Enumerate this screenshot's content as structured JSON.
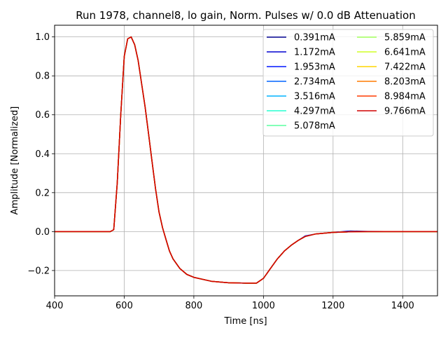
{
  "chart_data": {
    "type": "line",
    "title": "Run 1978, channel8, lo gain, Norm. Pulses w/ 0.0 dB Attenuation",
    "xlabel": "Time [ns]",
    "ylabel": "Amplitude [Normalized]",
    "xlim": [
      400,
      1500
    ],
    "ylim": [
      -0.33,
      1.06
    ],
    "xticks": [
      400,
      600,
      800,
      1000,
      1200,
      1400
    ],
    "xtick_labels": [
      "400",
      "600",
      "800",
      "1000",
      "1200",
      "1400"
    ],
    "yticks": [
      -0.2,
      0.0,
      0.2,
      0.4,
      0.6,
      0.8,
      1.0
    ],
    "ytick_labels": [
      "−0.2",
      "0.0",
      "0.2",
      "0.4",
      "0.6",
      "0.8",
      "1.0"
    ],
    "grid": true,
    "legend_position": "top-right",
    "legend_columns": 2,
    "x": [
      400,
      560,
      570,
      580,
      590,
      600,
      610,
      620,
      630,
      640,
      650,
      660,
      670,
      680,
      690,
      700,
      710,
      720,
      730,
      740,
      760,
      780,
      800,
      850,
      900,
      950,
      980,
      1000,
      1020,
      1040,
      1060,
      1080,
      1100,
      1120,
      1150,
      1200,
      1250,
      1300,
      1400,
      1500
    ],
    "series": [
      {
        "name": "0.391mA",
        "color": "#00008f",
        "values": [
          0.0,
          0.0,
          0.01,
          0.25,
          0.6,
          0.9,
          0.99,
          1.0,
          0.96,
          0.88,
          0.76,
          0.64,
          0.5,
          0.36,
          0.22,
          0.1,
          0.02,
          -0.04,
          -0.1,
          -0.14,
          -0.19,
          -0.22,
          -0.235,
          -0.255,
          -0.263,
          -0.265,
          -0.265,
          -0.24,
          -0.19,
          -0.14,
          -0.1,
          -0.07,
          -0.045,
          -0.025,
          -0.012,
          -0.004,
          -0.001,
          0.0,
          0.0,
          0.0
        ]
      },
      {
        "name": "1.172mA",
        "color": "#0000d0",
        "values": [
          0.0,
          0.0,
          0.01,
          0.25,
          0.6,
          0.9,
          0.99,
          1.0,
          0.96,
          0.88,
          0.76,
          0.64,
          0.5,
          0.36,
          0.22,
          0.1,
          0.02,
          -0.04,
          -0.1,
          -0.14,
          -0.19,
          -0.22,
          -0.235,
          -0.255,
          -0.263,
          -0.265,
          -0.265,
          -0.24,
          -0.19,
          -0.14,
          -0.1,
          -0.07,
          -0.045,
          -0.025,
          -0.012,
          -0.004,
          0.003,
          0.001,
          0.0,
          0.0
        ]
      },
      {
        "name": "1.953mA",
        "color": "#0016ff",
        "values": [
          0.0,
          0.0,
          0.01,
          0.25,
          0.6,
          0.9,
          0.99,
          1.0,
          0.96,
          0.88,
          0.76,
          0.64,
          0.5,
          0.36,
          0.22,
          0.1,
          0.02,
          -0.04,
          -0.1,
          -0.14,
          -0.19,
          -0.22,
          -0.235,
          -0.255,
          -0.263,
          -0.265,
          -0.265,
          -0.24,
          -0.19,
          -0.14,
          -0.1,
          -0.07,
          -0.045,
          -0.022,
          -0.012,
          -0.004,
          -0.001,
          0.0,
          0.0,
          0.0
        ]
      },
      {
        "name": "2.734mA",
        "color": "#0064ff",
        "values": [
          0.0,
          0.0,
          0.01,
          0.25,
          0.6,
          0.9,
          0.99,
          1.0,
          0.96,
          0.88,
          0.76,
          0.64,
          0.5,
          0.36,
          0.22,
          0.1,
          0.02,
          -0.04,
          -0.1,
          -0.14,
          -0.19,
          -0.22,
          -0.235,
          -0.255,
          -0.263,
          -0.265,
          -0.265,
          -0.24,
          -0.19,
          -0.14,
          -0.1,
          -0.07,
          -0.045,
          -0.025,
          -0.012,
          -0.004,
          -0.001,
          0.0,
          0.0,
          0.0
        ]
      },
      {
        "name": "3.516mA",
        "color": "#00b4ff",
        "values": [
          0.0,
          0.0,
          0.01,
          0.25,
          0.6,
          0.9,
          0.99,
          1.0,
          0.96,
          0.88,
          0.76,
          0.64,
          0.5,
          0.36,
          0.22,
          0.1,
          0.02,
          -0.04,
          -0.1,
          -0.14,
          -0.19,
          -0.22,
          -0.235,
          -0.255,
          -0.263,
          -0.265,
          -0.265,
          -0.24,
          -0.19,
          -0.14,
          -0.1,
          -0.07,
          -0.045,
          -0.025,
          -0.012,
          -0.004,
          -0.001,
          0.0,
          0.0,
          0.0
        ]
      },
      {
        "name": "4.297mA",
        "color": "#26ffd1",
        "values": [
          0.0,
          0.0,
          0.01,
          0.25,
          0.6,
          0.9,
          0.99,
          1.0,
          0.96,
          0.88,
          0.76,
          0.64,
          0.5,
          0.36,
          0.22,
          0.1,
          0.02,
          -0.04,
          -0.1,
          -0.14,
          -0.19,
          -0.22,
          -0.235,
          -0.255,
          -0.263,
          -0.265,
          -0.265,
          -0.24,
          -0.19,
          -0.14,
          -0.1,
          -0.07,
          -0.045,
          -0.025,
          -0.012,
          -0.004,
          -0.001,
          0.0,
          0.0,
          0.0
        ]
      },
      {
        "name": "5.078mA",
        "color": "#5affa0",
        "values": [
          0.0,
          0.0,
          0.01,
          0.25,
          0.6,
          0.9,
          0.99,
          1.0,
          0.96,
          0.88,
          0.76,
          0.64,
          0.5,
          0.36,
          0.22,
          0.1,
          0.02,
          -0.04,
          -0.1,
          -0.14,
          -0.19,
          -0.22,
          -0.235,
          -0.255,
          -0.263,
          -0.265,
          -0.265,
          -0.24,
          -0.19,
          -0.14,
          -0.1,
          -0.07,
          -0.045,
          -0.025,
          -0.012,
          -0.004,
          -0.001,
          0.0,
          0.0,
          0.0
        ]
      },
      {
        "name": "5.859mA",
        "color": "#a0ff5a",
        "values": [
          0.0,
          0.0,
          0.01,
          0.25,
          0.6,
          0.9,
          0.99,
          1.0,
          0.96,
          0.88,
          0.76,
          0.64,
          0.5,
          0.36,
          0.22,
          0.1,
          0.02,
          -0.04,
          -0.1,
          -0.14,
          -0.19,
          -0.22,
          -0.235,
          -0.255,
          -0.263,
          -0.265,
          -0.265,
          -0.24,
          -0.19,
          -0.14,
          -0.1,
          -0.07,
          -0.045,
          -0.025,
          -0.012,
          -0.004,
          -0.001,
          0.0,
          0.0,
          0.0
        ]
      },
      {
        "name": "6.641mA",
        "color": "#d1ff26",
        "values": [
          0.0,
          0.0,
          0.01,
          0.25,
          0.6,
          0.9,
          0.99,
          1.0,
          0.96,
          0.88,
          0.76,
          0.64,
          0.5,
          0.36,
          0.22,
          0.1,
          0.02,
          -0.04,
          -0.1,
          -0.14,
          -0.19,
          -0.22,
          -0.235,
          -0.255,
          -0.263,
          -0.265,
          -0.265,
          -0.24,
          -0.19,
          -0.14,
          -0.1,
          -0.07,
          -0.045,
          -0.025,
          -0.012,
          -0.004,
          -0.001,
          0.0,
          0.0,
          0.0
        ]
      },
      {
        "name": "7.422mA",
        "color": "#ffd600",
        "values": [
          0.0,
          0.0,
          0.01,
          0.25,
          0.6,
          0.9,
          0.99,
          1.0,
          0.96,
          0.88,
          0.76,
          0.64,
          0.5,
          0.36,
          0.22,
          0.1,
          0.02,
          -0.04,
          -0.1,
          -0.14,
          -0.19,
          -0.22,
          -0.235,
          -0.255,
          -0.263,
          -0.265,
          -0.265,
          -0.24,
          -0.19,
          -0.14,
          -0.1,
          -0.07,
          -0.045,
          -0.025,
          -0.012,
          -0.004,
          -0.001,
          0.0,
          0.0,
          0.0
        ]
      },
      {
        "name": "8.203mA",
        "color": "#ff7a00",
        "values": [
          0.0,
          0.0,
          0.01,
          0.25,
          0.6,
          0.9,
          0.99,
          1.0,
          0.96,
          0.88,
          0.76,
          0.64,
          0.5,
          0.36,
          0.22,
          0.1,
          0.02,
          -0.04,
          -0.1,
          -0.14,
          -0.19,
          -0.22,
          -0.235,
          -0.255,
          -0.263,
          -0.265,
          -0.265,
          -0.24,
          -0.19,
          -0.14,
          -0.1,
          -0.07,
          -0.045,
          -0.025,
          -0.012,
          -0.004,
          -0.001,
          0.0,
          0.0,
          0.0
        ]
      },
      {
        "name": "8.984mA",
        "color": "#ff3b00",
        "values": [
          0.0,
          0.0,
          0.01,
          0.25,
          0.6,
          0.9,
          0.99,
          1.0,
          0.96,
          0.88,
          0.76,
          0.64,
          0.5,
          0.36,
          0.22,
          0.1,
          0.02,
          -0.04,
          -0.1,
          -0.14,
          -0.19,
          -0.22,
          -0.235,
          -0.255,
          -0.263,
          -0.265,
          -0.265,
          -0.24,
          -0.19,
          -0.14,
          -0.1,
          -0.07,
          -0.045,
          -0.025,
          -0.012,
          -0.004,
          -0.001,
          0.0,
          0.0,
          0.0
        ]
      },
      {
        "name": "9.766mA",
        "color": "#d00000",
        "values": [
          0.0,
          0.0,
          0.01,
          0.25,
          0.6,
          0.9,
          0.99,
          1.0,
          0.96,
          0.88,
          0.76,
          0.64,
          0.5,
          0.36,
          0.22,
          0.1,
          0.02,
          -0.04,
          -0.1,
          -0.14,
          -0.19,
          -0.22,
          -0.235,
          -0.255,
          -0.263,
          -0.265,
          -0.265,
          -0.24,
          -0.19,
          -0.14,
          -0.1,
          -0.07,
          -0.045,
          -0.025,
          -0.012,
          -0.004,
          -0.001,
          0.0,
          0.0,
          0.0
        ]
      }
    ]
  }
}
